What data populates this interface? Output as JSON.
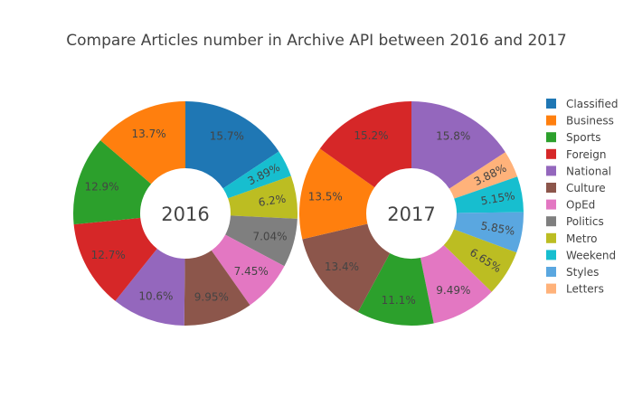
{
  "chart_data": {
    "type": "pie",
    "title": "Compare Articles number in Archive API between 2016 and 2017",
    "legend_position": "right",
    "categories": [
      "Classified",
      "Business",
      "Sports",
      "Foreign",
      "National",
      "Culture",
      "OpEd",
      "Politics",
      "Metro",
      "Weekend",
      "Styles",
      "Letters"
    ],
    "colors": {
      "Classified": "#1f77b4",
      "Business": "#ff7f0e",
      "Sports": "#2ca02c",
      "Foreign": "#d62728",
      "National": "#9467bd",
      "Culture": "#8c564b",
      "OpEd": "#e377c2",
      "Politics": "#7f7f7f",
      "Metro": "#bcbd22",
      "Weekend": "#17becf",
      "Styles": "#5aa7e0",
      "Letters": "#ffb27a"
    },
    "pies": [
      {
        "label": "2016",
        "hole": true,
        "slices": [
          {
            "category": "Classified",
            "value": 15.7,
            "label": "15.7%"
          },
          {
            "category": "Weekend",
            "value": 3.89,
            "label": "3.89%"
          },
          {
            "category": "Metro",
            "value": 6.2,
            "label": "6.2%"
          },
          {
            "category": "Politics",
            "value": 7.04,
            "label": "7.04%"
          },
          {
            "category": "OpEd",
            "value": 7.45,
            "label": "7.45%"
          },
          {
            "category": "Culture",
            "value": 9.95,
            "label": "9.95%"
          },
          {
            "category": "National",
            "value": 10.6,
            "label": "10.6%"
          },
          {
            "category": "Foreign",
            "value": 12.7,
            "label": "12.7%"
          },
          {
            "category": "Sports",
            "value": 12.9,
            "label": "12.9%"
          },
          {
            "category": "Business",
            "value": 13.7,
            "label": "13.7%"
          }
        ]
      },
      {
        "label": "2017",
        "hole": true,
        "slices": [
          {
            "category": "National",
            "value": 15.8,
            "label": "15.8%"
          },
          {
            "category": "Letters",
            "value": 3.88,
            "label": "3.88%"
          },
          {
            "category": "Weekend",
            "value": 5.15,
            "label": "5.15%"
          },
          {
            "category": "Styles",
            "value": 5.85,
            "label": "5.85%"
          },
          {
            "category": "Metro",
            "value": 6.65,
            "label": "6.65%"
          },
          {
            "category": "OpEd",
            "value": 9.49,
            "label": "9.49%"
          },
          {
            "category": "Sports",
            "value": 11.1,
            "label": "11.1%"
          },
          {
            "category": "Culture",
            "value": 13.4,
            "label": "13.4%"
          },
          {
            "category": "Business",
            "value": 13.5,
            "label": "13.5%"
          },
          {
            "category": "Foreign",
            "value": 15.2,
            "label": "15.2%"
          }
        ]
      }
    ]
  }
}
